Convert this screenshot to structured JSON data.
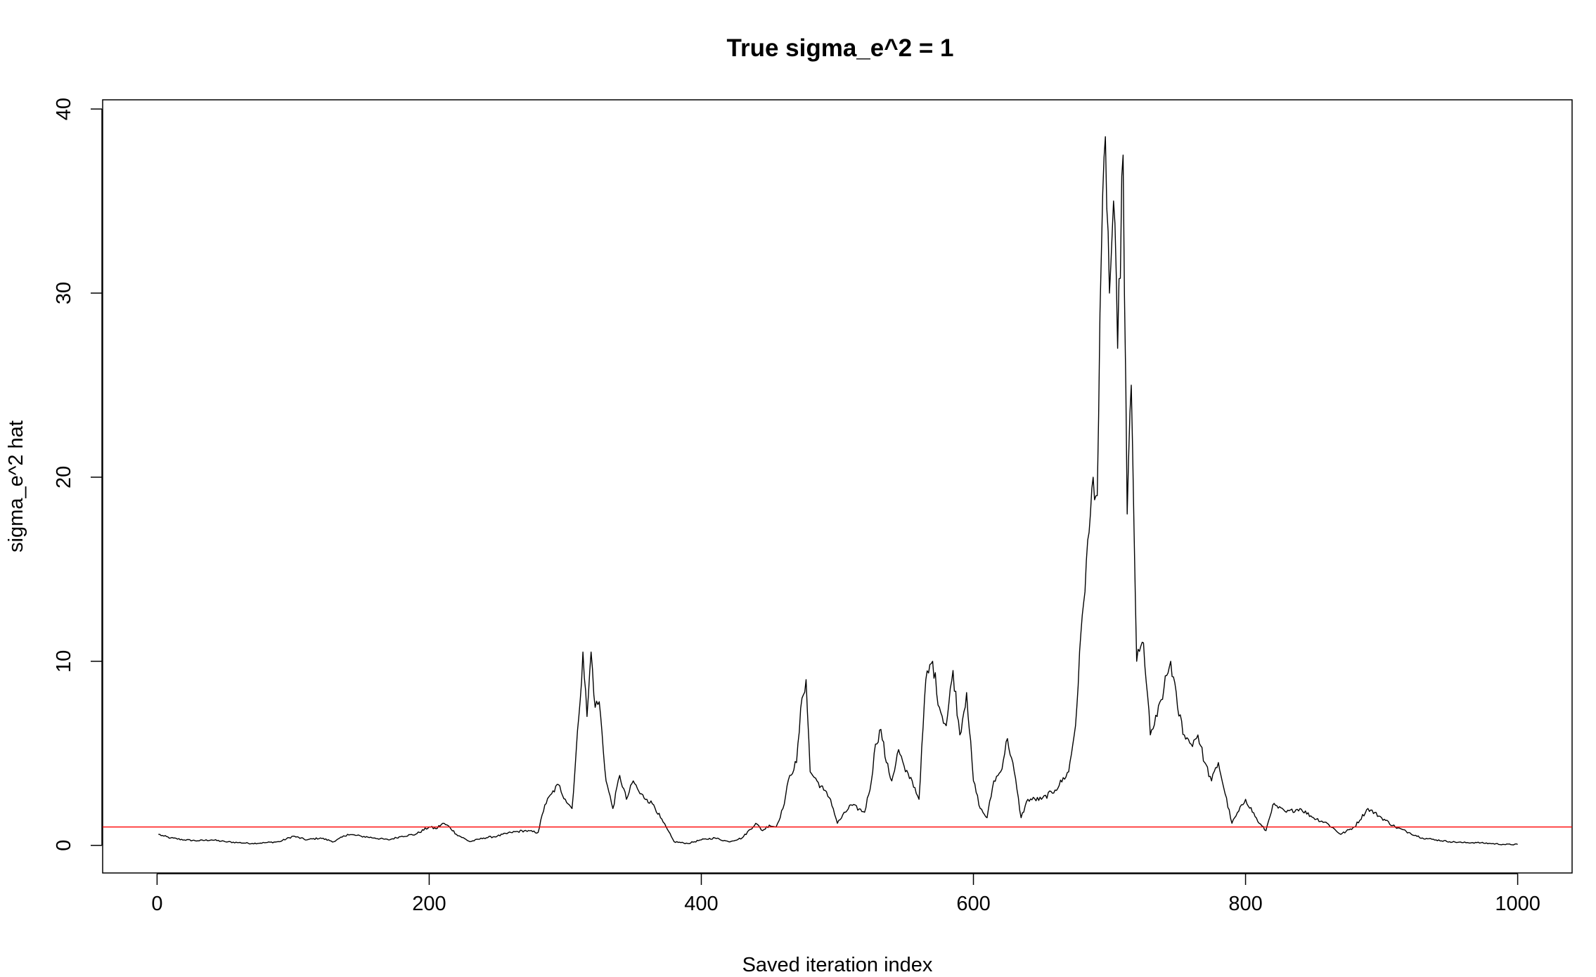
{
  "chart_data": {
    "type": "line",
    "title": "True sigma_e^2 = 1",
    "xlabel": "Saved iteration index",
    "ylabel": "sigma_e^2 hat",
    "xlim": [
      -40,
      1040
    ],
    "ylim": [
      -1.5,
      40.5
    ],
    "x_ticks": [
      0,
      200,
      400,
      600,
      800,
      1000
    ],
    "x_tick_labels": [
      "0",
      "200",
      "400",
      "600",
      "800",
      "1000"
    ],
    "y_ticks": [
      0,
      10,
      20,
      30,
      40
    ],
    "y_tick_labels": [
      "0",
      "10",
      "20",
      "30",
      "40"
    ],
    "grid": false,
    "legend": "none",
    "series": [
      {
        "color": "#000000",
        "x": [
          1,
          5,
          10,
          20,
          30,
          40,
          50,
          60,
          70,
          80,
          90,
          100,
          110,
          120,
          130,
          140,
          150,
          160,
          170,
          180,
          190,
          200,
          205,
          210,
          215,
          220,
          230,
          240,
          250,
          260,
          270,
          280,
          285,
          290,
          295,
          300,
          305,
          310,
          313,
          316,
          319,
          322,
          325,
          330,
          335,
          340,
          345,
          350,
          355,
          360,
          365,
          370,
          380,
          390,
          400,
          410,
          420,
          430,
          440,
          445,
          450,
          455,
          460,
          465,
          470,
          474,
          477,
          480,
          485,
          490,
          495,
          500,
          510,
          520,
          525,
          528,
          532,
          536,
          540,
          545,
          550,
          555,
          560,
          565,
          570,
          575,
          580,
          585,
          590,
          595,
          600,
          605,
          610,
          615,
          620,
          625,
          630,
          635,
          640,
          650,
          660,
          670,
          675,
          680,
          685,
          688,
          691,
          694,
          697,
          700,
          703,
          706,
          710,
          713,
          716,
          720,
          725,
          730,
          735,
          740,
          745,
          750,
          755,
          760,
          765,
          770,
          775,
          780,
          785,
          790,
          800,
          810,
          815,
          820,
          830,
          840,
          850,
          860,
          870,
          880,
          890,
          900,
          910,
          920,
          930,
          940,
          950,
          960,
          970,
          980,
          990,
          1000
        ],
        "values": [
          0.6,
          0.5,
          0.4,
          0.3,
          0.25,
          0.3,
          0.2,
          0.15,
          0.1,
          0.15,
          0.2,
          0.5,
          0.3,
          0.4,
          0.2,
          0.6,
          0.5,
          0.4,
          0.3,
          0.5,
          0.6,
          1.0,
          0.9,
          1.2,
          1.0,
          0.6,
          0.2,
          0.4,
          0.5,
          0.7,
          0.8,
          0.7,
          2.2,
          2.8,
          3.3,
          2.5,
          2.0,
          7.0,
          10.5,
          7.0,
          10.5,
          7.5,
          7.8,
          3.5,
          2.0,
          3.8,
          2.5,
          3.5,
          2.8,
          2.5,
          2.2,
          1.5,
          0.2,
          0.1,
          0.3,
          0.4,
          0.2,
          0.4,
          1.2,
          0.8,
          1.1,
          1.0,
          2.0,
          3.8,
          4.5,
          8.0,
          9.0,
          4.0,
          3.5,
          3.0,
          2.5,
          1.2,
          2.2,
          1.8,
          3.5,
          5.5,
          6.3,
          4.5,
          3.5,
          5.2,
          4.0,
          3.5,
          2.5,
          9.0,
          10.0,
          7.5,
          6.5,
          9.5,
          6.0,
          8.3,
          3.5,
          2.0,
          1.5,
          3.5,
          4.0,
          5.8,
          4.0,
          1.5,
          2.5,
          2.5,
          3.0,
          4.0,
          6.5,
          12.5,
          17.0,
          20.0,
          19.0,
          32.0,
          38.5,
          30.0,
          35.0,
          27.0,
          37.5,
          18.0,
          25.0,
          10.0,
          11.0,
          6.0,
          7.0,
          8.5,
          10.0,
          7.5,
          6.0,
          5.5,
          6.0,
          4.5,
          3.5,
          4.5,
          2.8,
          1.2,
          2.5,
          1.2,
          0.8,
          2.2,
          1.8,
          2.0,
          1.5,
          1.2,
          0.6,
          1.0,
          2.0,
          1.5,
          1.0,
          0.7,
          0.4,
          0.3,
          0.2,
          0.15,
          0.15,
          0.1,
          0.05,
          0.05
        ]
      },
      {
        "color": "#ff0000",
        "type": "hline",
        "y": 1
      }
    ]
  }
}
